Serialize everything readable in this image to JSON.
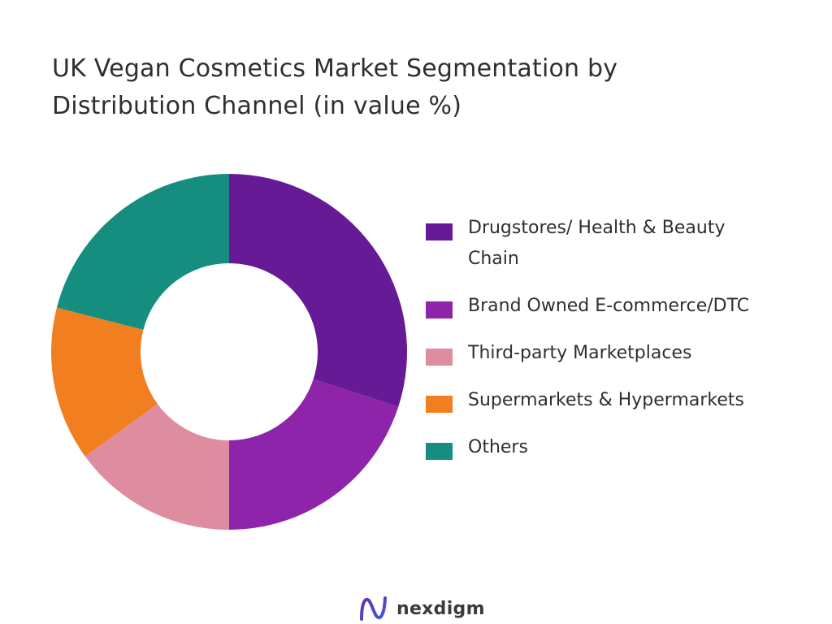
{
  "brand": {
    "name": "nexdigm"
  },
  "chart_data": {
    "type": "pie",
    "title": "UK Vegan Cosmetics Market Segmentation by Distribution Channel (in value %)",
    "legend_position": "right",
    "categories": [
      "Drugstores/ Health & Beauty Chain",
      "Brand Owned E-commerce/DTC",
      "Third-party Marketplaces",
      "Supermarkets & Hypermarkets",
      "Others"
    ],
    "values": [
      30,
      20,
      15,
      14,
      21
    ],
    "colors": [
      "#661a96",
      "#8e24aa",
      "#de8ca0",
      "#f27f1f",
      "#158e80"
    ],
    "legend": [
      {
        "label": "Drugstores/ Health & Beauty Chain",
        "lines": [
          "Drugstores/ Health & Beauty",
          "Chain"
        ],
        "color": "#661a96"
      },
      {
        "label": "Brand Owned E-commerce/DTC",
        "lines": [
          "Brand Owned E-commerce/DTC"
        ],
        "color": "#8e24aa"
      },
      {
        "label": "Third-party Marketplaces",
        "lines": [
          "Third-party Marketplaces"
        ],
        "color": "#de8ca0"
      },
      {
        "label": "Supermarkets & Hypermarkets",
        "lines": [
          "Supermarkets & Hypermarkets"
        ],
        "color": "#f27f1f"
      },
      {
        "label": "Others",
        "lines": [
          "Others"
        ],
        "color": "#158e80"
      }
    ]
  }
}
